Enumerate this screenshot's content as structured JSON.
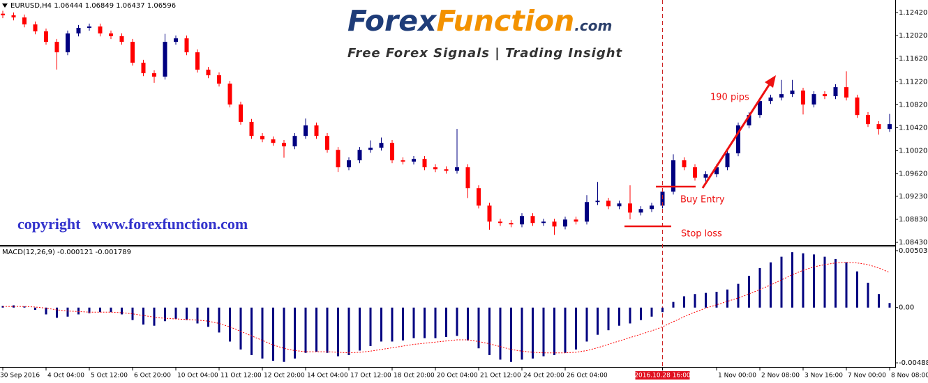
{
  "watermark": {
    "logo_forex": "Forex",
    "logo_function": "Function",
    "logo_com": ".com",
    "tagline": "Free Forex Signals | Trading Insight",
    "copyright": "copyright   www.forexfunction.com"
  },
  "chart_data": [
    {
      "type": "candlestick",
      "title": "EURUSD,H4  1.06444 1.06849 1.06437 1.06596",
      "up_color": "#000080",
      "down_color": "#ff0000",
      "annotations": [
        "190 pips",
        "Buy Entry",
        "Stop loss"
      ],
      "categories": [
        "30 Sep 2016",
        null,
        null,
        null,
        "4 Oct 04:00",
        null,
        null,
        null,
        "5 Oct 12:00",
        null,
        null,
        null,
        "6 Oct 20:00",
        null,
        null,
        null,
        "10 Oct 04:00",
        null,
        null,
        null,
        "11 Oct 12:00",
        null,
        null,
        null,
        "12 Oct 20:00",
        null,
        null,
        null,
        "14 Oct 04:00",
        null,
        null,
        null,
        "17 Oct 12:00",
        null,
        null,
        null,
        "18 Oct 20:00",
        null,
        null,
        null,
        "20 Oct 04:00",
        null,
        null,
        null,
        "21 Oct 12:00",
        null,
        null,
        null,
        "24 Oct 20:00",
        null,
        null,
        null,
        "26 Oct 04:00",
        null,
        null,
        null,
        null,
        null,
        null,
        null,
        null,
        "2016.10.28 16:00",
        null,
        null,
        null,
        null,
        "1 Nov 00:00",
        null,
        null,
        null,
        "2 Nov 08:00",
        null,
        null,
        null,
        "3 Nov 16:00",
        null,
        null,
        null,
        "7 Nov 00:00",
        null,
        null,
        null,
        "8 Nov 08:00"
      ],
      "cursor_category": "2016.10.28 16:00",
      "open": [
        1.124,
        1.12372,
        1.12335,
        1.12214,
        1.12093,
        1.11912,
        1.1173,
        1.12057,
        1.12154,
        1.12178,
        1.12057,
        1.12009,
        1.11912,
        1.11549,
        1.11367,
        1.11307,
        1.11912,
        1.11972,
        1.1173,
        1.11428,
        1.11331,
        1.11186,
        1.10823,
        1.10523,
        1.10278,
        1.10218,
        1.10157,
        1.10097,
        1.10278,
        1.1046,
        1.10278,
        1.10036,
        1.09734,
        1.09855,
        1.10036,
        1.10073,
        1.10157,
        1.09855,
        1.09831,
        1.09879,
        1.09734,
        1.09698,
        1.09673,
        1.09734,
        1.09371,
        1.09068,
        1.0879,
        1.08766,
        1.08742,
        1.08887,
        1.08766,
        1.0879,
        1.08705,
        1.08826,
        1.0879,
        1.09129,
        1.09153,
        1.09056,
        1.09105,
        1.08947,
        1.09008,
        1.09068,
        1.0931,
        1.09855,
        1.09734,
        1.09552,
        1.09613,
        1.09734,
        1.09976,
        1.1046,
        1.10641,
        1.10883,
        1.10944,
        1.11004,
        1.11065,
        1.10823,
        1.11004,
        1.10968,
        1.11125,
        1.10944,
        1.10641,
        1.10484,
        1.10399
      ],
      "high": [
        1.1245,
        1.12422,
        1.12385,
        1.12264,
        1.12143,
        1.11962,
        1.12107,
        1.12204,
        1.12228,
        1.12228,
        1.12107,
        1.12059,
        1.11962,
        1.11599,
        1.11417,
        1.1205,
        1.12022,
        1.12022,
        1.1178,
        1.11478,
        1.11381,
        1.11236,
        1.10873,
        1.10573,
        1.10328,
        1.10268,
        1.10207,
        1.10328,
        1.1058,
        1.1051,
        1.10328,
        1.10086,
        1.09905,
        1.10086,
        1.102,
        1.1025,
        1.10207,
        1.09905,
        1.09929,
        1.09929,
        1.09784,
        1.09748,
        1.10399,
        1.09784,
        1.09421,
        1.09118,
        1.0884,
        1.08816,
        1.08937,
        1.08937,
        1.0884,
        1.0884,
        1.08876,
        1.08876,
        1.0925,
        1.0948,
        1.09203,
        1.09155,
        1.0942,
        1.09058,
        1.09118,
        1.0936,
        1.0996,
        1.09905,
        1.09784,
        1.09663,
        1.09784,
        1.10026,
        1.1051,
        1.10691,
        1.10933,
        1.10994,
        1.1125,
        1.1125,
        1.11115,
        1.11054,
        1.11054,
        1.11175,
        1.114,
        1.10994,
        1.10691,
        1.10534,
        1.1066
      ],
      "low": [
        1.12322,
        1.12285,
        1.12164,
        1.12043,
        1.11862,
        1.1143,
        1.1168,
        1.12007,
        1.12104,
        1.12007,
        1.11959,
        1.11862,
        1.11499,
        1.11317,
        1.112,
        1.11257,
        1.11862,
        1.1168,
        1.11378,
        1.11281,
        1.11136,
        1.10773,
        1.10473,
        1.10228,
        1.10168,
        1.10107,
        1.099,
        1.10047,
        1.10228,
        1.10228,
        1.09986,
        1.0965,
        1.09684,
        1.09805,
        1.09986,
        1.10023,
        1.09805,
        1.09781,
        1.09781,
        1.09684,
        1.09648,
        1.09623,
        1.09623,
        1.092,
        1.09018,
        1.0865,
        1.08716,
        1.08692,
        1.08692,
        1.08716,
        1.08716,
        1.0856,
        1.08655,
        1.0874,
        1.0874,
        1.09079,
        1.09006,
        1.09006,
        1.0883,
        1.08897,
        1.08958,
        1.09018,
        1.0926,
        1.09684,
        1.09502,
        1.0945,
        1.09563,
        1.09684,
        1.09926,
        1.1041,
        1.10591,
        1.10833,
        1.10894,
        1.10954,
        1.1065,
        1.10773,
        1.10918,
        1.10918,
        1.10894,
        1.10591,
        1.10434,
        1.103,
        1.10349
      ],
      "close": [
        1.12372,
        1.12335,
        1.12214,
        1.12093,
        1.11912,
        1.1173,
        1.12057,
        1.12154,
        1.12178,
        1.12057,
        1.12009,
        1.11912,
        1.11549,
        1.11367,
        1.11307,
        1.11912,
        1.11972,
        1.1173,
        1.11428,
        1.11331,
        1.11186,
        1.10823,
        1.10523,
        1.10278,
        1.10218,
        1.10157,
        1.10097,
        1.10278,
        1.1046,
        1.10278,
        1.10036,
        1.09734,
        1.09855,
        1.10036,
        1.10073,
        1.10157,
        1.09855,
        1.09831,
        1.09879,
        1.09734,
        1.09698,
        1.09673,
        1.09734,
        1.09371,
        1.09068,
        1.0879,
        1.08766,
        1.08742,
        1.08887,
        1.08766,
        1.0879,
        1.08705,
        1.08826,
        1.0879,
        1.09129,
        1.09153,
        1.09056,
        1.09105,
        1.08947,
        1.09008,
        1.09068,
        1.0931,
        1.09855,
        1.09734,
        1.09552,
        1.09613,
        1.09734,
        1.09976,
        1.1046,
        1.10641,
        1.10883,
        1.10944,
        1.11004,
        1.11065,
        1.10823,
        1.11004,
        1.10968,
        1.11125,
        1.10944,
        1.10641,
        1.10484,
        1.10399,
        1.10484
      ],
      "ylim": [
        1.08382,
        1.12638
      ],
      "yticks": [
        {
          "value": 1.1242,
          "label": "1.12420"
        },
        {
          "value": 1.1202,
          "label": "1.12020"
        },
        {
          "value": 1.1162,
          "label": "1.11620"
        },
        {
          "value": 1.1122,
          "label": "1.11220"
        },
        {
          "value": 1.1082,
          "label": "1.10820"
        },
        {
          "value": 1.1042,
          "label": "1.10420"
        },
        {
          "value": 1.1002,
          "label": "1.10020"
        },
        {
          "value": 1.0962,
          "label": "1.09620"
        },
        {
          "value": 1.0923,
          "label": "1.09230"
        },
        {
          "value": 1.0883,
          "label": "1.08830"
        },
        {
          "value": 1.0843,
          "label": "1.08430"
        }
      ]
    },
    {
      "type": "macd",
      "title": "MACD(12,26,9) -0.000121 -0.001789",
      "histogram": {
        "color": "#000080",
        "values": [
          0.00015,
          0.0002,
          0.0001,
          -0.0002,
          -0.0006,
          -0.0009,
          -0.0008,
          -0.0006,
          -0.0005,
          -0.0004,
          -0.0004,
          -0.0006,
          -0.0011,
          -0.0015,
          -0.0016,
          -0.0012,
          -0.001,
          -0.0011,
          -0.0014,
          -0.0017,
          -0.0022,
          -0.003,
          -0.0037,
          -0.0042,
          -0.0045,
          -0.0047,
          -0.0048,
          -0.0045,
          -0.004,
          -0.0039,
          -0.004,
          -0.0043,
          -0.0042,
          -0.0038,
          -0.0034,
          -0.003,
          -0.003,
          -0.0029,
          -0.0027,
          -0.0027,
          -0.0027,
          -0.0026,
          -0.0025,
          -0.0029,
          -0.0036,
          -0.0042,
          -0.0046,
          -0.0048,
          -0.0046,
          -0.0045,
          -0.0043,
          -0.0042,
          -0.004,
          -0.0037,
          -0.003,
          -0.0024,
          -0.002,
          -0.0016,
          -0.0014,
          -0.0011,
          -0.0008,
          -0.0004,
          0.0005,
          0.001,
          0.0012,
          0.0013,
          0.0014,
          0.0016,
          0.0021,
          0.0028,
          0.0035,
          0.004,
          0.0045,
          0.0049,
          0.0048,
          0.0047,
          0.0045,
          0.0043,
          0.004,
          0.0032,
          0.0022,
          0.0012,
          0.0004
        ]
      },
      "signal": {
        "color": "#ff0000",
        "values": [
          0.0001,
          0.0001,
          0.0001,
          5e-05,
          -5e-05,
          -0.0002,
          -0.0003,
          -0.00035,
          -0.0004,
          -0.0004,
          -0.0004,
          -0.00045,
          -0.00055,
          -0.0007,
          -0.00085,
          -0.00095,
          -0.001,
          -0.00105,
          -0.0011,
          -0.0012,
          -0.0014,
          -0.0017,
          -0.0021,
          -0.0025,
          -0.0029,
          -0.0033,
          -0.0036,
          -0.0038,
          -0.0039,
          -0.0039,
          -0.0039,
          -0.00395,
          -0.004,
          -0.00395,
          -0.00385,
          -0.0037,
          -0.00355,
          -0.0034,
          -0.00325,
          -0.00315,
          -0.00305,
          -0.00295,
          -0.00285,
          -0.00285,
          -0.003,
          -0.0032,
          -0.00345,
          -0.0037,
          -0.00385,
          -0.00395,
          -0.004,
          -0.004,
          -0.004,
          -0.00395,
          -0.0038,
          -0.00355,
          -0.00325,
          -0.00295,
          -0.00265,
          -0.00235,
          -0.00205,
          -0.0017,
          -0.00125,
          -0.0008,
          -0.0004,
          -5e-05,
          0.00025,
          0.00055,
          0.00085,
          0.0012,
          0.0016,
          0.002,
          0.00245,
          0.0029,
          0.0033,
          0.0036,
          0.0038,
          0.00395,
          0.004,
          0.00395,
          0.0038,
          0.0035,
          0.0031
        ]
      },
      "ylim": [
        -0.00525,
        0.00534
      ],
      "yticks": [
        0.005035,
        {
          "value": 0,
          "label": "0.00"
        },
        -0.004884
      ]
    }
  ]
}
